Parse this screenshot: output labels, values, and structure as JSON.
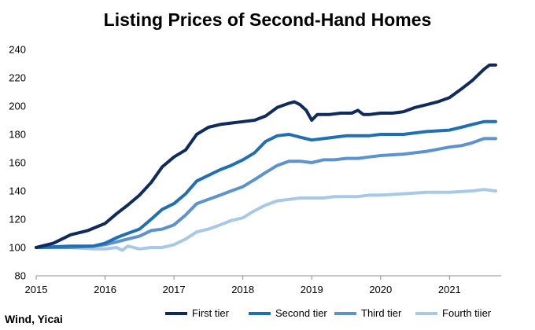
{
  "chart_data": {
    "type": "line",
    "title": "Listing Prices of Second-Hand Homes",
    "source": "Wind, Yicai",
    "xlabel": "",
    "ylabel": "",
    "xlim": [
      2015.0,
      2021.75
    ],
    "ylim": [
      80,
      240
    ],
    "y_ticks": [
      80,
      100,
      120,
      140,
      160,
      180,
      200,
      220,
      240
    ],
    "x_ticks": [
      "2015",
      "2016",
      "2017",
      "2018",
      "2019",
      "2020",
      "2021"
    ],
    "grid": false,
    "legend": "bottom",
    "series": [
      {
        "name": "First tier",
        "color": "#0f2a5e",
        "x": [
          2015.0,
          2015.25,
          2015.5,
          2015.75,
          2016.0,
          2016.17,
          2016.33,
          2016.5,
          2016.67,
          2016.83,
          2017.0,
          2017.17,
          2017.33,
          2017.5,
          2017.67,
          2017.83,
          2018.0,
          2018.17,
          2018.33,
          2018.5,
          2018.67,
          2018.75,
          2018.83,
          2018.92,
          2019.0,
          2019.08,
          2019.25,
          2019.42,
          2019.58,
          2019.67,
          2019.75,
          2019.83,
          2020.0,
          2020.17,
          2020.33,
          2020.5,
          2020.67,
          2020.83,
          2021.0,
          2021.17,
          2021.33,
          2021.5,
          2021.58,
          2021.67
        ],
        "y": [
          100,
          103,
          109,
          112,
          117,
          124,
          130,
          137,
          146,
          157,
          164,
          169,
          180,
          185,
          187,
          188,
          189,
          190,
          193,
          199,
          202,
          203,
          201,
          197,
          190,
          194,
          194,
          195,
          195,
          197,
          194,
          194,
          195,
          195,
          196,
          199,
          201,
          203,
          206,
          212,
          218,
          226,
          229,
          229
        ]
      },
      {
        "name": "Second tier",
        "color": "#1f6fb5",
        "x": [
          2015.0,
          2015.5,
          2015.83,
          2016.0,
          2016.17,
          2016.33,
          2016.5,
          2016.67,
          2016.83,
          2017.0,
          2017.17,
          2017.33,
          2017.5,
          2017.67,
          2017.83,
          2018.0,
          2018.17,
          2018.33,
          2018.5,
          2018.67,
          2018.83,
          2019.0,
          2019.17,
          2019.33,
          2019.5,
          2019.67,
          2019.83,
          2020.0,
          2020.33,
          2020.67,
          2021.0,
          2021.17,
          2021.33,
          2021.5,
          2021.67
        ],
        "y": [
          100,
          101,
          101,
          103,
          107,
          110,
          113,
          120,
          127,
          131,
          138,
          147,
          151,
          155,
          158,
          162,
          167,
          175,
          179,
          180,
          178,
          176,
          177,
          178,
          179,
          179,
          179,
          180,
          180,
          182,
          183,
          185,
          187,
          189,
          189
        ]
      },
      {
        "name": "Third tier",
        "color": "#5b92cf",
        "x": [
          2015.0,
          2015.5,
          2015.83,
          2016.0,
          2016.17,
          2016.33,
          2016.5,
          2016.67,
          2016.83,
          2017.0,
          2017.17,
          2017.33,
          2017.5,
          2017.67,
          2017.83,
          2018.0,
          2018.17,
          2018.33,
          2018.5,
          2018.67,
          2018.83,
          2019.0,
          2019.17,
          2019.33,
          2019.5,
          2019.67,
          2019.83,
          2020.0,
          2020.33,
          2020.67,
          2021.0,
          2021.17,
          2021.33,
          2021.5,
          2021.67
        ],
        "y": [
          100,
          100,
          101,
          102,
          104,
          106,
          108,
          112,
          113,
          116,
          123,
          131,
          134,
          137,
          140,
          143,
          148,
          153,
          158,
          161,
          161,
          160,
          162,
          162,
          163,
          163,
          164,
          165,
          166,
          168,
          171,
          172,
          174,
          177,
          177
        ]
      },
      {
        "name": "Fourth tiier",
        "color": "#a8c8e8",
        "x": [
          2015.0,
          2015.5,
          2015.83,
          2016.0,
          2016.17,
          2016.25,
          2016.33,
          2016.5,
          2016.67,
          2016.83,
          2017.0,
          2017.17,
          2017.33,
          2017.5,
          2017.67,
          2017.83,
          2018.0,
          2018.17,
          2018.33,
          2018.5,
          2018.67,
          2018.83,
          2019.0,
          2019.17,
          2019.33,
          2019.5,
          2019.67,
          2019.83,
          2020.0,
          2020.33,
          2020.67,
          2021.0,
          2021.33,
          2021.5,
          2021.67
        ],
        "y": [
          100,
          100,
          99,
          99,
          100,
          98,
          101,
          99,
          100,
          100,
          102,
          106,
          111,
          113,
          116,
          119,
          121,
          126,
          130,
          133,
          134,
          135,
          135,
          135,
          136,
          136,
          136,
          137,
          137,
          138,
          139,
          139,
          140,
          141,
          140
        ]
      }
    ]
  }
}
